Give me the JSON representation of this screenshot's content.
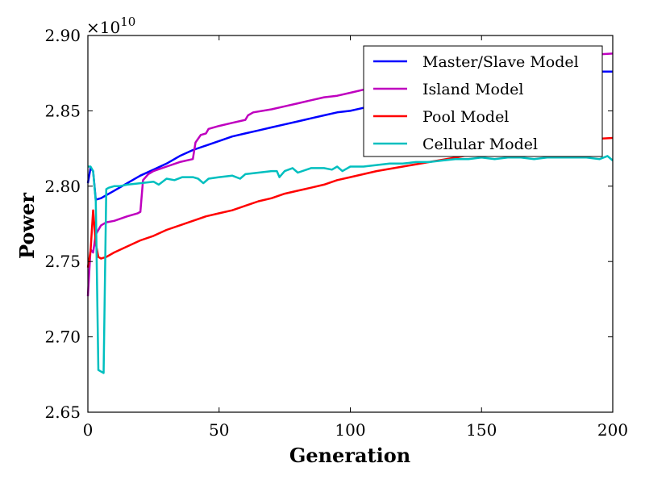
{
  "chart_data": {
    "type": "line",
    "xlabel": "Generation",
    "ylabel": "Power",
    "y_multiplier": "×10",
    "y_exponent": "10",
    "xlim": [
      0,
      200
    ],
    "ylim": [
      2.65,
      2.9
    ],
    "xticks": [
      0,
      50,
      100,
      150,
      200
    ],
    "xtick_labels": [
      "0",
      "50",
      "100",
      "150",
      "200"
    ],
    "yticks": [
      2.65,
      2.7,
      2.75,
      2.8,
      2.85,
      2.9
    ],
    "ytick_labels": [
      "2.65",
      "2.70",
      "2.75",
      "2.80",
      "2.85",
      "2.90"
    ],
    "grid": false,
    "legend_position": "top-right",
    "series": [
      {
        "name": "Master/Slave Model",
        "color": "#0000ff",
        "points": [
          [
            0,
            2.802
          ],
          [
            1,
            2.812
          ],
          [
            2,
            2.81
          ],
          [
            3,
            2.791
          ],
          [
            5,
            2.792
          ],
          [
            10,
            2.797
          ],
          [
            15,
            2.802
          ],
          [
            20,
            2.807
          ],
          [
            25,
            2.811
          ],
          [
            30,
            2.815
          ],
          [
            35,
            2.82
          ],
          [
            40,
            2.824
          ],
          [
            45,
            2.827
          ],
          [
            50,
            2.83
          ],
          [
            55,
            2.833
          ],
          [
            60,
            2.835
          ],
          [
            65,
            2.837
          ],
          [
            70,
            2.839
          ],
          [
            75,
            2.841
          ],
          [
            80,
            2.843
          ],
          [
            85,
            2.845
          ],
          [
            90,
            2.847
          ],
          [
            95,
            2.849
          ],
          [
            100,
            2.85
          ],
          [
            105,
            2.852
          ],
          [
            110,
            2.854
          ],
          [
            115,
            2.856
          ],
          [
            120,
            2.858
          ],
          [
            125,
            2.86
          ],
          [
            130,
            2.862
          ],
          [
            135,
            2.864
          ],
          [
            140,
            2.866
          ],
          [
            145,
            2.868
          ],
          [
            150,
            2.87
          ],
          [
            155,
            2.871
          ],
          [
            160,
            2.872
          ],
          [
            165,
            2.873
          ],
          [
            170,
            2.874
          ],
          [
            180,
            2.875
          ],
          [
            190,
            2.876
          ],
          [
            200,
            2.876
          ]
        ]
      },
      {
        "name": "Island Model",
        "color": "#bf00bf",
        "points": [
          [
            0,
            2.727
          ],
          [
            1,
            2.758
          ],
          [
            2,
            2.756
          ],
          [
            3,
            2.768
          ],
          [
            5,
            2.774
          ],
          [
            7,
            2.776
          ],
          [
            10,
            2.777
          ],
          [
            15,
            2.78
          ],
          [
            19,
            2.782
          ],
          [
            20,
            2.783
          ],
          [
            21,
            2.804
          ],
          [
            23,
            2.808
          ],
          [
            25,
            2.81
          ],
          [
            30,
            2.813
          ],
          [
            35,
            2.816
          ],
          [
            40,
            2.818
          ],
          [
            41,
            2.829
          ],
          [
            43,
            2.834
          ],
          [
            45,
            2.835
          ],
          [
            46,
            2.838
          ],
          [
            50,
            2.84
          ],
          [
            55,
            2.842
          ],
          [
            60,
            2.844
          ],
          [
            61,
            2.847
          ],
          [
            63,
            2.849
          ],
          [
            70,
            2.851
          ],
          [
            75,
            2.853
          ],
          [
            80,
            2.855
          ],
          [
            85,
            2.857
          ],
          [
            90,
            2.859
          ],
          [
            95,
            2.86
          ],
          [
            100,
            2.862
          ],
          [
            105,
            2.864
          ],
          [
            110,
            2.866
          ],
          [
            115,
            2.868
          ],
          [
            120,
            2.87
          ],
          [
            130,
            2.873
          ],
          [
            140,
            2.876
          ],
          [
            150,
            2.879
          ],
          [
            160,
            2.882
          ],
          [
            170,
            2.884
          ],
          [
            180,
            2.886
          ],
          [
            190,
            2.887
          ],
          [
            200,
            2.888
          ]
        ]
      },
      {
        "name": "Pool Model",
        "color": "#ff0000",
        "points": [
          [
            0,
            2.746
          ],
          [
            1,
            2.757
          ],
          [
            2,
            2.784
          ],
          [
            3,
            2.762
          ],
          [
            4,
            2.753
          ],
          [
            5,
            2.752
          ],
          [
            7,
            2.753
          ],
          [
            10,
            2.756
          ],
          [
            15,
            2.76
          ],
          [
            20,
            2.764
          ],
          [
            25,
            2.767
          ],
          [
            30,
            2.771
          ],
          [
            35,
            2.774
          ],
          [
            40,
            2.777
          ],
          [
            45,
            2.78
          ],
          [
            50,
            2.782
          ],
          [
            55,
            2.784
          ],
          [
            60,
            2.787
          ],
          [
            65,
            2.79
          ],
          [
            70,
            2.792
          ],
          [
            75,
            2.795
          ],
          [
            80,
            2.797
          ],
          [
            85,
            2.799
          ],
          [
            90,
            2.801
          ],
          [
            95,
            2.804
          ],
          [
            100,
            2.806
          ],
          [
            110,
            2.81
          ],
          [
            120,
            2.813
          ],
          [
            130,
            2.816
          ],
          [
            140,
            2.819
          ],
          [
            150,
            2.822
          ],
          [
            160,
            2.825
          ],
          [
            170,
            2.827
          ],
          [
            180,
            2.829
          ],
          [
            190,
            2.831
          ],
          [
            200,
            2.832
          ]
        ]
      },
      {
        "name": "Cellular Model",
        "color": "#00bfbf",
        "points": [
          [
            0,
            2.813
          ],
          [
            1,
            2.813
          ],
          [
            2,
            2.81
          ],
          [
            3,
            2.79
          ],
          [
            4,
            2.678
          ],
          [
            5,
            2.677
          ],
          [
            6,
            2.676
          ],
          [
            7,
            2.798
          ],
          [
            8,
            2.799
          ],
          [
            10,
            2.8
          ],
          [
            12,
            2.8
          ],
          [
            15,
            2.801
          ],
          [
            20,
            2.802
          ],
          [
            25,
            2.803
          ],
          [
            27,
            2.801
          ],
          [
            30,
            2.805
          ],
          [
            33,
            2.804
          ],
          [
            36,
            2.806
          ],
          [
            40,
            2.806
          ],
          [
            42,
            2.805
          ],
          [
            44,
            2.802
          ],
          [
            46,
            2.805
          ],
          [
            50,
            2.806
          ],
          [
            55,
            2.807
          ],
          [
            58,
            2.805
          ],
          [
            60,
            2.808
          ],
          [
            65,
            2.809
          ],
          [
            70,
            2.81
          ],
          [
            72,
            2.81
          ],
          [
            73,
            2.806
          ],
          [
            75,
            2.81
          ],
          [
            78,
            2.812
          ],
          [
            80,
            2.809
          ],
          [
            85,
            2.812
          ],
          [
            90,
            2.812
          ],
          [
            93,
            2.811
          ],
          [
            95,
            2.813
          ],
          [
            97,
            2.81
          ],
          [
            100,
            2.813
          ],
          [
            105,
            2.813
          ],
          [
            110,
            2.814
          ],
          [
            115,
            2.815
          ],
          [
            120,
            2.815
          ],
          [
            125,
            2.816
          ],
          [
            130,
            2.816
          ],
          [
            135,
            2.817
          ],
          [
            140,
            2.818
          ],
          [
            145,
            2.818
          ],
          [
            150,
            2.819
          ],
          [
            155,
            2.818
          ],
          [
            160,
            2.819
          ],
          [
            165,
            2.819
          ],
          [
            170,
            2.818
          ],
          [
            175,
            2.819
          ],
          [
            180,
            2.819
          ],
          [
            185,
            2.819
          ],
          [
            190,
            2.819
          ],
          [
            195,
            2.818
          ],
          [
            198,
            2.82
          ],
          [
            200,
            2.817
          ]
        ]
      }
    ]
  }
}
